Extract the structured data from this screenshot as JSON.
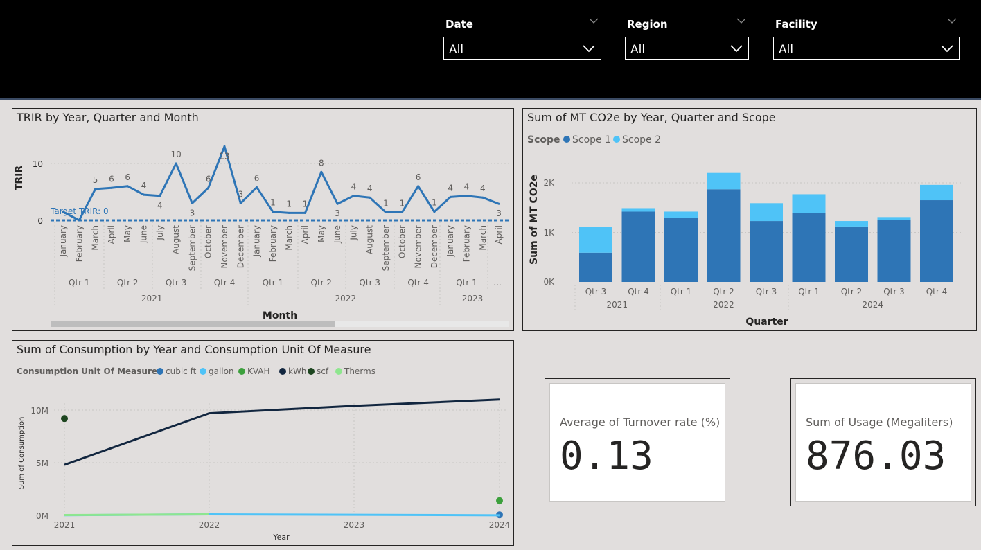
{
  "slicers": [
    {
      "title": "Date",
      "value": "All"
    },
    {
      "title": "Region",
      "value": "All"
    },
    {
      "title": "Facility",
      "value": "All"
    }
  ],
  "trir_chart": {
    "title": "TRIR by Year, Quarter and Month",
    "ylabel": "TRIR",
    "xlabel": "Month",
    "target_label": "Target TRIR: 0",
    "y_ticks": [
      "10",
      "0"
    ]
  },
  "co2_chart": {
    "title": "Sum of MT CO2e by Year, Quarter and Scope",
    "legend_title": "Scope",
    "ylabel": "Sum of MT CO2e",
    "xlabel": "Quarter",
    "y_ticks": [
      "2K",
      "1K",
      "0K"
    ]
  },
  "consumption_chart": {
    "title": "Sum of Consumption by Year and Consumption Unit Of Measure",
    "legend_title": "Consumption Unit Of Measure",
    "ylabel": "Sum of Consumption",
    "xlabel": "Year",
    "y_ticks": [
      "10M",
      "5M",
      "0M"
    ]
  },
  "cards": [
    {
      "label": "Average of Turnover rate (%)",
      "value": "0.13"
    },
    {
      "label": "Sum of Usage (Megaliters)",
      "value": "876.03"
    }
  ],
  "colors": {
    "primary": "#2e75b6",
    "light": "#4fc3f7",
    "kwh": "#12263f",
    "kvah": "#3ca03c",
    "scf": "#1e4620",
    "therms": "#8ee68e"
  },
  "chart_data": [
    {
      "type": "line",
      "title": "TRIR by Year, Quarter and Month",
      "ylabel": "TRIR",
      "xlabel": "Month",
      "ylim": [
        0,
        14
      ],
      "target": 0,
      "x": [
        "January",
        "February",
        "March",
        "April",
        "May",
        "June",
        "July",
        "August",
        "September",
        "October",
        "November",
        "December",
        "January",
        "February",
        "March",
        "April",
        "May",
        "June",
        "July",
        "August",
        "September",
        "October",
        "November",
        "December",
        "January",
        "February",
        "March",
        "April"
      ],
      "quarters": [
        "Qtr 1",
        "Qtr 2",
        "Qtr 3",
        "Qtr 4",
        "Qtr 1",
        "Qtr 2",
        "Qtr 3",
        "Qtr 4",
        "Qtr 1",
        "..."
      ],
      "years": [
        "2021",
        "2022",
        "2023"
      ],
      "values": [
        1.5,
        0,
        5.5,
        5.7,
        6,
        4.5,
        4.3,
        10,
        3,
        5.7,
        13,
        3,
        5.8,
        1.5,
        1.3,
        1.3,
        8.5,
        2.9,
        4.3,
        4,
        1.4,
        1.4,
        6,
        1.5,
        4.1,
        4.3,
        4,
        2.9
      ],
      "labels": [
        "",
        "",
        "5",
        "6",
        "6",
        "4",
        "4",
        "10",
        "3",
        "6",
        "13",
        "3",
        "6",
        "1",
        "1",
        "1",
        "8",
        "3",
        "4",
        "4",
        "1",
        "1",
        "6",
        "1",
        "4",
        "4",
        "4",
        "3"
      ]
    },
    {
      "type": "bar",
      "stacked": true,
      "title": "Sum of MT CO2e by Year, Quarter and Scope",
      "ylabel": "Sum of MT CO2e",
      "xlabel": "Quarter",
      "ylim": [
        0,
        2500
      ],
      "categories": [
        "Qtr 3",
        "Qtr 4",
        "Qtr 1",
        "Qtr 2",
        "Qtr 3",
        "Qtr 1",
        "Qtr 2",
        "Qtr 3",
        "Qtr 4"
      ],
      "years": [
        "2021",
        "2022",
        "2024"
      ],
      "legend_position": "top-left",
      "series": [
        {
          "name": "Scope 1",
          "values": [
            590,
            1420,
            1300,
            1870,
            1230,
            1390,
            1120,
            1250,
            1650
          ]
        },
        {
          "name": "Scope 2",
          "values": [
            520,
            70,
            120,
            330,
            360,
            380,
            110,
            60,
            310
          ]
        }
      ]
    },
    {
      "type": "line",
      "title": "Sum of Consumption by Year and Consumption Unit Of Measure",
      "ylabel": "Sum of Consumption",
      "xlabel": "Year",
      "ylim": [
        0,
        12000000
      ],
      "x": [
        "2021",
        "2022",
        "2023",
        "2024"
      ],
      "legend_position": "top-left",
      "series": [
        {
          "name": "cubic ft",
          "values": [
            null,
            null,
            null,
            50000
          ]
        },
        {
          "name": "gallon",
          "values": [
            20000,
            100000,
            60000,
            10000
          ]
        },
        {
          "name": "KVAH",
          "values": [
            null,
            null,
            null,
            1400000
          ]
        },
        {
          "name": "kWh",
          "values": [
            4800000,
            9700000,
            10400000,
            11000000
          ]
        },
        {
          "name": "scf",
          "values": [
            9200000,
            null,
            null,
            null
          ]
        },
        {
          "name": "Therms",
          "values": [
            30000,
            100000,
            null,
            null
          ]
        }
      ]
    }
  ]
}
